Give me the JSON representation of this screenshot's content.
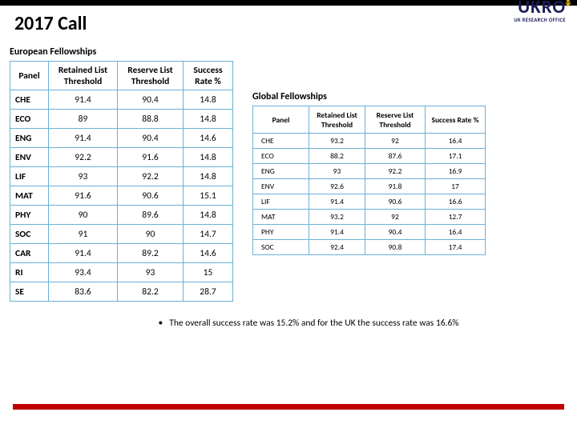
{
  "page": {
    "title": "2017 Call",
    "logo_main": "UKRO",
    "logo_sub": "UK RESEARCH OFFICE",
    "note": "The overall success rate was 15.2% and for the UK the success rate was 16.6%"
  },
  "colors": {
    "top_bar": "#000000",
    "bottom_bar": "#c00000",
    "table_border": "#6ab1d6",
    "logo_color": "#1a1a5c",
    "star_color": "#d4a800"
  },
  "table_left": {
    "title": "European Fellowships",
    "columns": [
      "Panel",
      "Retained List Threshold",
      "Reserve List Threshold",
      "Success Rate %"
    ],
    "rows": [
      [
        "CHE",
        "91.4",
        "90.4",
        "14.8"
      ],
      [
        "ECO",
        "89",
        "88.8",
        "14.8"
      ],
      [
        "ENG",
        "91.4",
        "90.4",
        "14.6"
      ],
      [
        "ENV",
        "92.2",
        "91.6",
        "14.8"
      ],
      [
        "LIF",
        "93",
        "92.2",
        "14.8"
      ],
      [
        "MAT",
        "91.6",
        "90.6",
        "15.1"
      ],
      [
        "PHY",
        "90",
        "89.6",
        "14.8"
      ],
      [
        "SOC",
        "91",
        "90",
        "14.7"
      ],
      [
        "CAR",
        "91.4",
        "89.2",
        "14.6"
      ],
      [
        "RI",
        "93.4",
        "93",
        "15"
      ],
      [
        "SE",
        "83.6",
        "82.2",
        "28.7"
      ]
    ]
  },
  "table_right": {
    "title": "Global Fellowships",
    "columns": [
      "Panel",
      "Retained List Threshold",
      "Reserve List Threshold",
      "Success Rate %"
    ],
    "rows": [
      [
        "CHE",
        "93.2",
        "92",
        "16.4"
      ],
      [
        "ECO",
        "88.2",
        "87.6",
        "17.1"
      ],
      [
        "ENG",
        "93",
        "92.2",
        "16.9"
      ],
      [
        "ENV",
        "92.6",
        "91.8",
        "17"
      ],
      [
        "LIF",
        "91.4",
        "90.6",
        "16.6"
      ],
      [
        "MAT",
        "93.2",
        "92",
        "12.7"
      ],
      [
        "PHY",
        "91.4",
        "90.4",
        "16.4"
      ],
      [
        "SOC",
        "92.4",
        "90.8",
        "17.4"
      ]
    ]
  }
}
